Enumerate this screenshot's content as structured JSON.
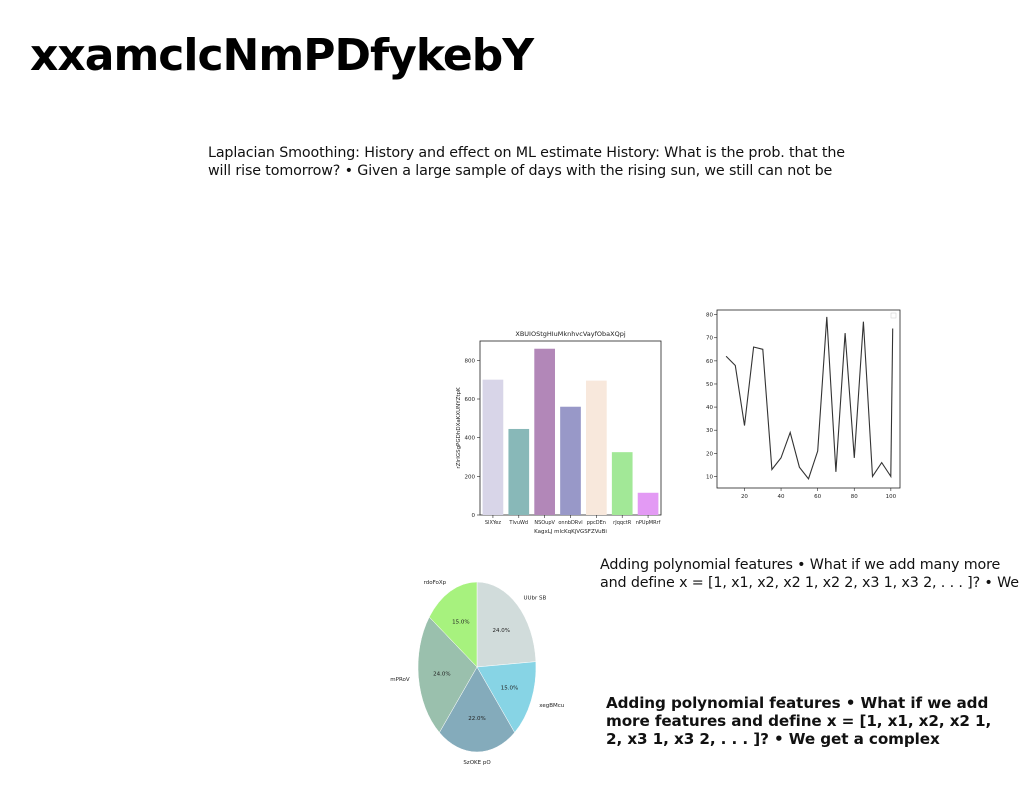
{
  "title": "xxamclcNmPDfykebY",
  "paragraphs": {
    "p1_line1": "Laplacian Smoothing: History and effect on ML estimate History: What is the prob. that the",
    "p1_line2": "will rise tomorrow? • Given a large sample of days with the rising sun, we still can not be",
    "p2_line1": "Adding polynomial features • What if we add many more",
    "p2_line2": "and define x = [1, x1, x2, x2 1, x2 2, x3 1, x3 2, . . . ]? • We",
    "p3_line1": "Adding polynomial features • What if we add",
    "p3_line2": "more features and define x = [1, x1, x2, x2 1,",
    "p3_line3": "2, x3 1, x3 2, . . . ]? • We get a complex"
  },
  "chart_data": [
    {
      "type": "bar",
      "title": "XBUIOStgHIuMknhvcVayfObaXQpj",
      "xlabel": "KagxLJ mlcKqKjVGSFZVuBi",
      "ylabel": "rZlrIGSgPGDhDXaKXUNYZtpK",
      "categories": [
        "SlXYez",
        "TlvuWd",
        "NSOupV",
        "onnbDRvl",
        "ppcDEn",
        "rJqqctR",
        "nPUpMRrf"
      ],
      "values": [
        700,
        445,
        860,
        560,
        695,
        325,
        115
      ],
      "colors": [
        "#d8d5e8",
        "#88b8b8",
        "#b287b8",
        "#9898c8",
        "#f8e8dc",
        "#a2e897",
        "#e39af4"
      ],
      "ylim": [
        0,
        900
      ],
      "yticks": [
        0,
        200,
        400,
        600,
        800
      ]
    },
    {
      "type": "line",
      "x": [
        10,
        15,
        20,
        25,
        30,
        35,
        40,
        45,
        50,
        55,
        60,
        65,
        70,
        75,
        80,
        85,
        90,
        95,
        100
      ],
      "y": [
        62,
        58,
        32,
        66,
        65,
        13,
        18,
        29,
        14,
        9,
        21,
        79,
        12,
        72,
        18,
        77,
        10,
        16,
        10
      ],
      "y_tail": 74,
      "xlim": [
        5,
        105
      ],
      "ylim": [
        5,
        82
      ],
      "xticks": [
        20,
        40,
        60,
        80,
        100
      ],
      "yticks": [
        10,
        20,
        30,
        40,
        50,
        60,
        70,
        80
      ],
      "color": "#333333"
    },
    {
      "type": "pie",
      "labels": [
        "UUbr SB",
        "xegBMcu",
        "SzOKE pO",
        "mPRoV",
        "rdoFoXp"
      ],
      "values": [
        24.0,
        15.0,
        22.0,
        24.0,
        15.0
      ],
      "pct_labels": [
        "24.0%",
        "15.0%",
        "22.0%",
        "24.0%",
        "15.0%"
      ],
      "colors": [
        "#d1dcdb",
        "#87d4e5",
        "#84abbb",
        "#9ac0ad",
        "#a7f27e"
      ]
    }
  ]
}
